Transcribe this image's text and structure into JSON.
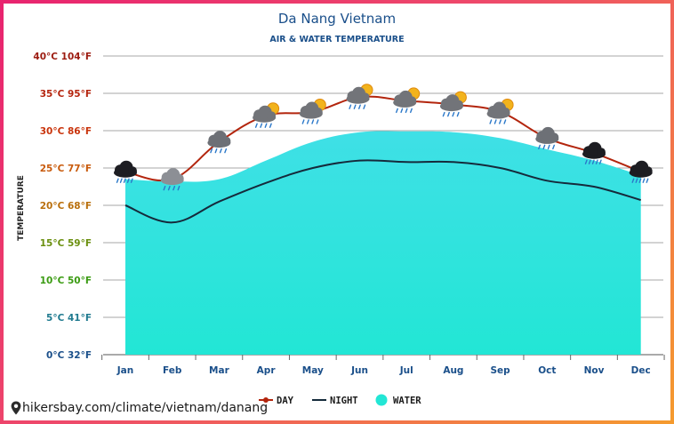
{
  "chart_data": {
    "type": "line",
    "title": "Da Nang Vietnam",
    "subtitle": "AIR & WATER TEMPERATURE",
    "ylabel": "TEMPERATURE",
    "categories": [
      "Jan",
      "Feb",
      "Mar",
      "Apr",
      "May",
      "Jun",
      "Jul",
      "Aug",
      "Sep",
      "Oct",
      "Nov",
      "Dec"
    ],
    "ylim": [
      0,
      40
    ],
    "yticks": [
      {
        "value": 0,
        "label": "0°C 32°F",
        "color": "#1a4f8a"
      },
      {
        "value": 5,
        "label": "5°C 41°F",
        "color": "#1f7a8f"
      },
      {
        "value": 10,
        "label": "10°C 50°F",
        "color": "#3a9b12"
      },
      {
        "value": 15,
        "label": "15°C 59°F",
        "color": "#6a8f0e"
      },
      {
        "value": 20,
        "label": "20°C 68°F",
        "color": "#b96f0c"
      },
      {
        "value": 25,
        "label": "25°C 77°F",
        "color": "#c85a0b"
      },
      {
        "value": 30,
        "label": "30°C 86°F",
        "color": "#c9340c"
      },
      {
        "value": 35,
        "label": "35°C 95°F",
        "color": "#b5250e"
      },
      {
        "value": 40,
        "label": "40°C 104°F",
        "color": "#9c1b10"
      }
    ],
    "grid": true,
    "legend_position": "bottom",
    "series": [
      {
        "name": "DAY",
        "kind": "line",
        "color": "#b3250d",
        "values": [
          24.5,
          23.5,
          28.5,
          32,
          32.5,
          34.5,
          34,
          33.5,
          32.5,
          29,
          27,
          24.5
        ]
      },
      {
        "name": "NIGHT",
        "kind": "line",
        "color": "#152a3b",
        "values": [
          20,
          17.7,
          20.5,
          23,
          25,
          26,
          25.8,
          25.8,
          25,
          23.3,
          22.5,
          20.7
        ]
      },
      {
        "name": "WATER",
        "kind": "area",
        "color": "#22e6d5",
        "values": [
          23.5,
          23.2,
          23.5,
          26,
          28.5,
          29.8,
          29.9,
          29.8,
          29,
          27.5,
          26,
          24
        ]
      }
    ],
    "weather_icons": [
      "heavy-rain-icon",
      "light-rain-icon",
      "rain-cloud-icon",
      "sun-cloud-rain-icon",
      "sun-cloud-rain-icon",
      "sun-cloud-rain-icon",
      "sun-cloud-rain-icon",
      "sun-cloud-rain-icon",
      "sun-cloud-rain-icon",
      "rain-cloud-icon",
      "heavy-rain-icon",
      "heavy-rain-icon"
    ]
  },
  "footer": {
    "site_url": "hikersbay.com/climate/vietnam/danang",
    "pin_color": "#2b2b2b"
  },
  "colors": {
    "gradient_start": "#e8236f",
    "gradient_end": "#f59b2e",
    "text_primary": "#1a4f8a"
  }
}
